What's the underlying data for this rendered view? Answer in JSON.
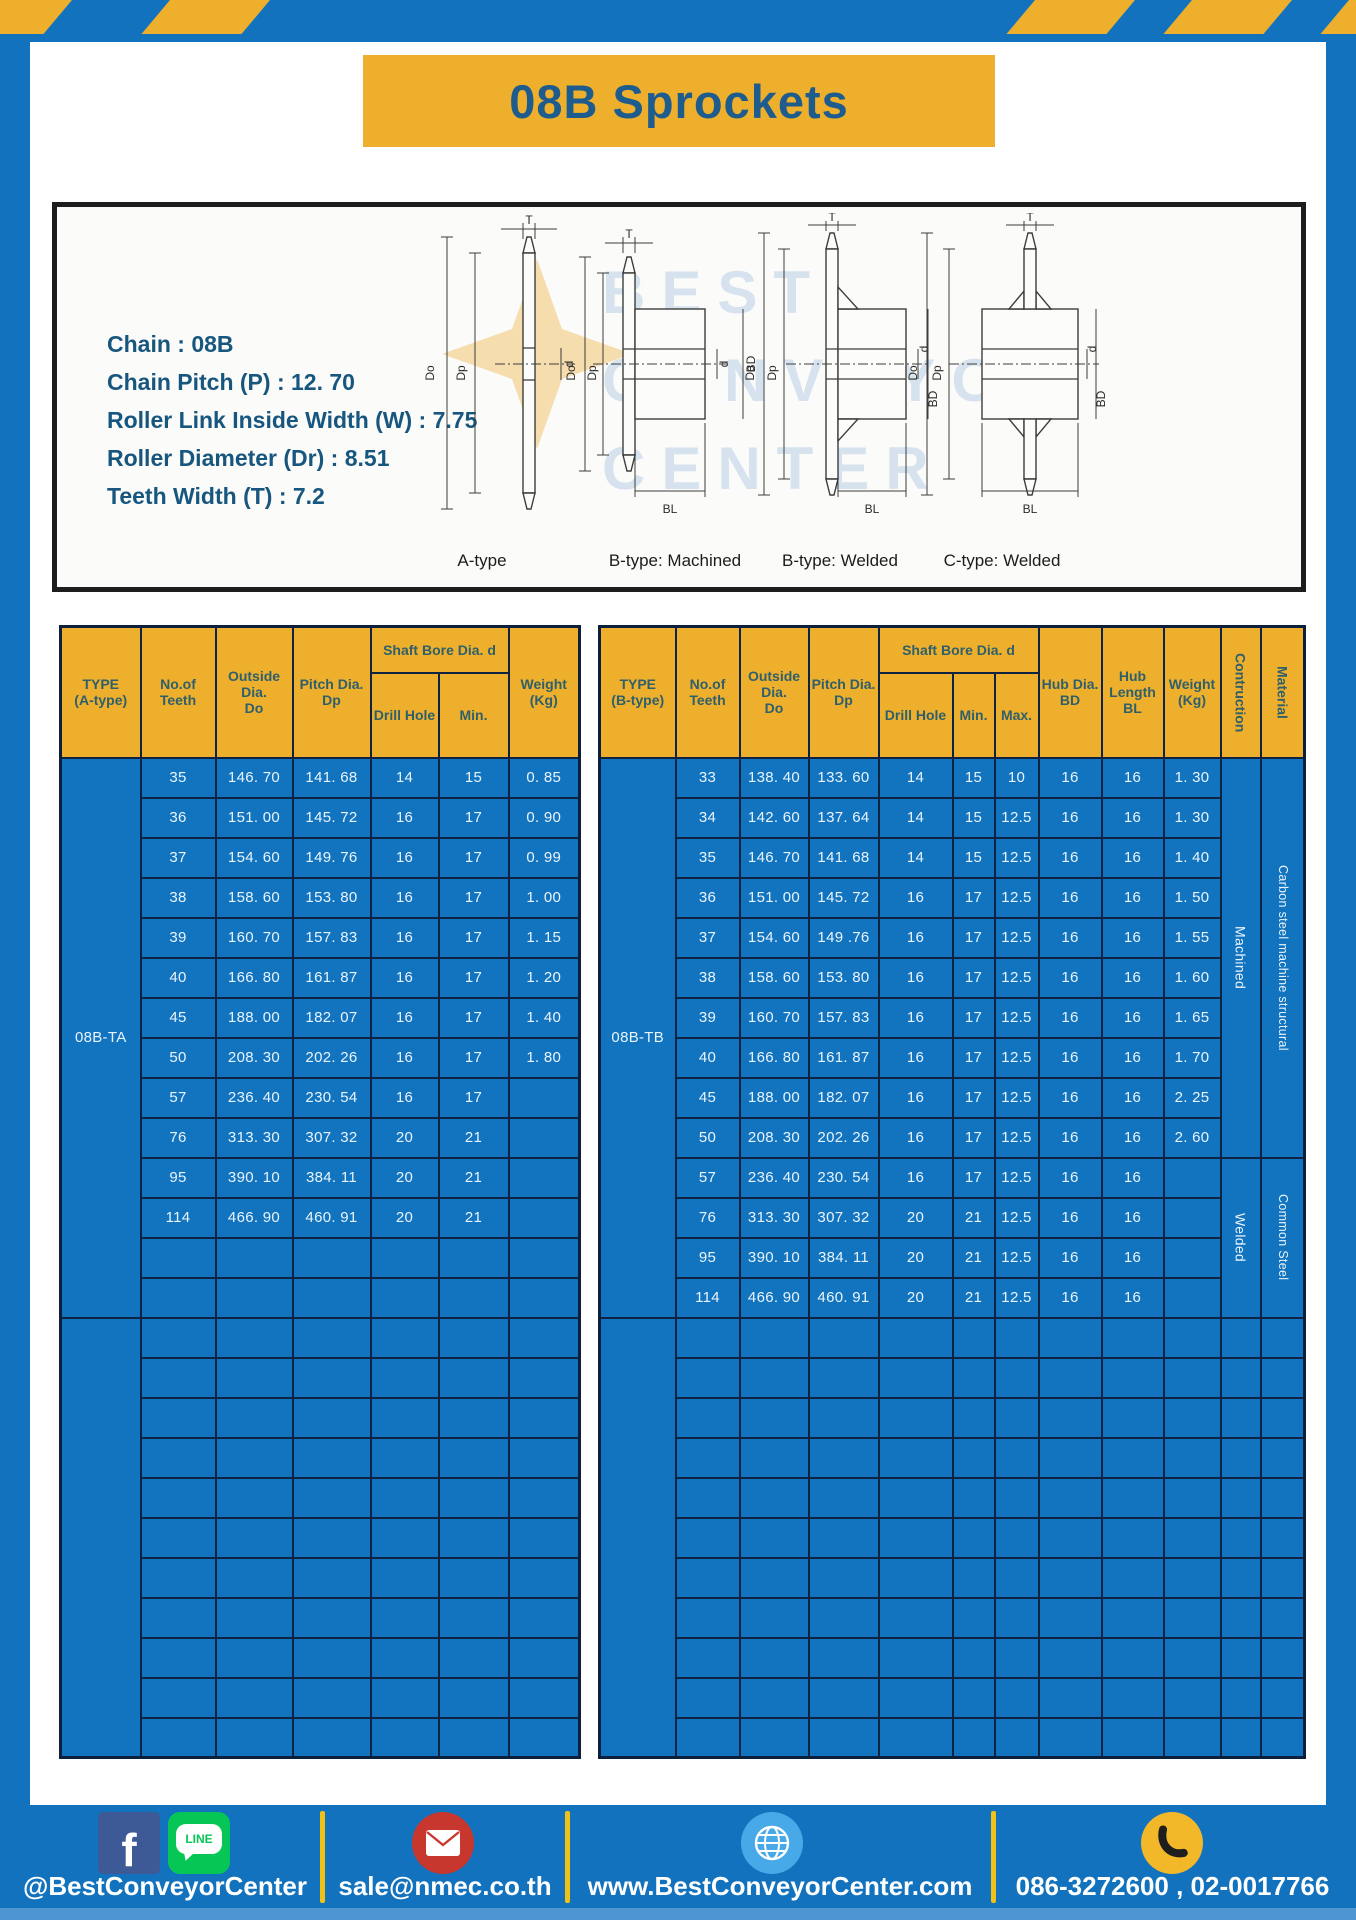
{
  "page": {
    "title": "08B Sprockets"
  },
  "colors": {
    "frame_blue": "#1272bd",
    "table_blue": "#1274bf",
    "accent_yellow": "#eeb02c",
    "title_text": "#1e5c8e",
    "grid_line": "#0e2342"
  },
  "specs": {
    "lines": [
      "Chain  : 08B",
      "Chain Pitch (P)  :  12. 70",
      "Roller Link Inside Width (W)  :  7.75",
      "Roller Diameter (Dr)  : 8.51",
      "Teeth Width (T)  :  7.2"
    ]
  },
  "diagram": {
    "dims": {
      "t": "T",
      "do": "Do",
      "dp": "Dp",
      "d": "d",
      "bd": "BD",
      "bl": "BL"
    },
    "captions": [
      "A-type",
      "B-type: Machined",
      "B-type: Welded",
      "C-type: Welded"
    ],
    "watermark_lines": [
      "BEST",
      "CONVEYOR",
      "CENTER"
    ]
  },
  "table_a": {
    "headers": {
      "type": "TYPE\n(A-type)",
      "teeth": "No.of\nTeeth",
      "outside": "Outside\nDia.\nDo",
      "pitch": "Pitch Dia.\nDp",
      "shaft": "Shaft Bore Dia. d",
      "drill": "Drill Hole",
      "min": "Min.",
      "weight": "Weight\n(Kg)"
    },
    "type_label": "08B-TA",
    "rows": [
      [
        "35",
        "146. 70",
        "141. 68",
        "14",
        "15",
        "0. 85"
      ],
      [
        "36",
        "151. 00",
        "145. 72",
        "16",
        "17",
        "0. 90"
      ],
      [
        "37",
        "154. 60",
        "149. 76",
        "16",
        "17",
        "0. 99"
      ],
      [
        "38",
        "158. 60",
        "153. 80",
        "16",
        "17",
        "1. 00"
      ],
      [
        "39",
        "160. 70",
        "157. 83",
        "16",
        "17",
        "1. 15"
      ],
      [
        "40",
        "166. 80",
        "161. 87",
        "16",
        "17",
        "1. 20"
      ],
      [
        "45",
        "188. 00",
        "182. 07",
        "16",
        "17",
        "1. 40"
      ],
      [
        "50",
        "208. 30",
        "202. 26",
        "16",
        "17",
        "1. 80"
      ],
      [
        "57",
        "236. 40",
        "230. 54",
        "16",
        "17",
        ""
      ],
      [
        "76",
        "313. 30",
        "307. 32",
        "20",
        "21",
        ""
      ],
      [
        "95",
        "390. 10",
        "384. 11",
        "20",
        "21",
        ""
      ],
      [
        "114",
        "466. 90",
        "460. 91",
        "20",
        "21",
        ""
      ]
    ],
    "blank_rows_in_block": 2,
    "blank_rows_tail": 11
  },
  "table_b": {
    "headers": {
      "type": "TYPE\n(B-type)",
      "teeth": "No.of\nTeeth",
      "outside": "Outside\nDia.\nDo",
      "pitch": "Pitch Dia.\nDp",
      "shaft": "Shaft Bore Dia. d",
      "drill": "Drill Hole",
      "min": "Min.",
      "max": "Max.",
      "bd": "Hub Dia.\nBD",
      "bl": "Hub\nLength\nBL",
      "weight": "Weight\n(Kg)",
      "construction": "Contruction",
      "material": "Material"
    },
    "type_label": "08B-TB",
    "rows": [
      [
        "33",
        "138. 40",
        "133. 60",
        "14",
        "15",
        "10",
        "16",
        "16",
        "1. 30"
      ],
      [
        "34",
        "142. 60",
        "137. 64",
        "14",
        "15",
        "12.5",
        "16",
        "16",
        "1. 30"
      ],
      [
        "35",
        "146. 70",
        "141. 68",
        "14",
        "15",
        "12.5",
        "16",
        "16",
        "1. 40"
      ],
      [
        "36",
        "151. 00",
        "145. 72",
        "16",
        "17",
        "12.5",
        "16",
        "16",
        "1. 50"
      ],
      [
        "37",
        "154. 60",
        "149 .76",
        "16",
        "17",
        "12.5",
        "16",
        "16",
        "1. 55"
      ],
      [
        "38",
        "158. 60",
        "153. 80",
        "16",
        "17",
        "12.5",
        "16",
        "16",
        "1. 60"
      ],
      [
        "39",
        "160. 70",
        "157. 83",
        "16",
        "17",
        "12.5",
        "16",
        "16",
        "1. 65"
      ],
      [
        "40",
        "166. 80",
        "161. 87",
        "16",
        "17",
        "12.5",
        "16",
        "16",
        "1. 70"
      ],
      [
        "45",
        "188. 00",
        "182. 07",
        "16",
        "17",
        "12.5",
        "16",
        "16",
        "2. 25"
      ],
      [
        "50",
        "208. 30",
        "202. 26",
        "16",
        "17",
        "12.5",
        "16",
        "16",
        "2. 60"
      ],
      [
        "57",
        "236. 40",
        "230. 54",
        "16",
        "17",
        "12.5",
        "16",
        "16",
        ""
      ],
      [
        "76",
        "313. 30",
        "307. 32",
        "20",
        "21",
        "12.5",
        "16",
        "16",
        ""
      ],
      [
        "95",
        "390. 10",
        "384. 11",
        "20",
        "21",
        "12.5",
        "16",
        "16",
        ""
      ],
      [
        "114",
        "466. 90",
        "460. 91",
        "20",
        "21",
        "12.5",
        "16",
        "16",
        ""
      ]
    ],
    "construction_groups": [
      {
        "label": "Machined",
        "span": 10
      },
      {
        "label": "Welded",
        "span": 4
      }
    ],
    "material_groups": [
      {
        "label": "Carbon steel  machine structural",
        "span": 10
      },
      {
        "label": "Common  Steel",
        "span": 4
      }
    ],
    "blank_rows_tail": 11
  },
  "footer": {
    "facebook_glyph": "f",
    "line_text": "LINE",
    "social_label": "@BestConveyorCenter",
    "email": "sale@nmec.co.th",
    "website": "www.BestConveyorCenter.com",
    "phones": "086-3272600 , 02-0017766"
  }
}
